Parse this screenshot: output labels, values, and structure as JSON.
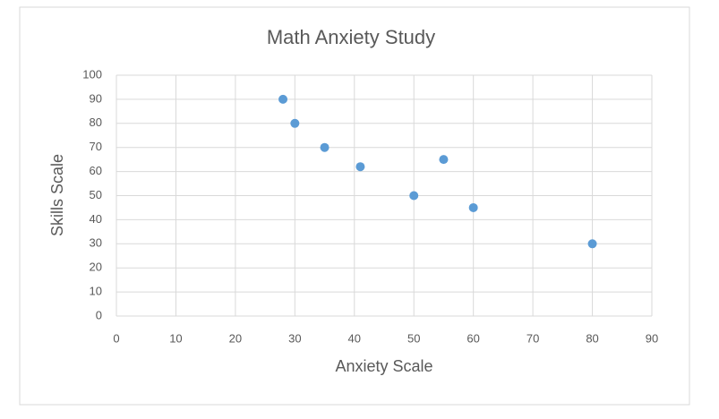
{
  "chart_data": {
    "type": "scatter",
    "title": "Math Anxiety Study",
    "x_label": "Anxiety Scale",
    "y_label": "Skills Scale",
    "series": [
      {
        "name": "Skills Scale",
        "color": "#5b9bd5",
        "x": [
          28,
          30,
          35,
          41,
          50,
          55,
          60,
          80
        ],
        "values": [
          90,
          80,
          70,
          62,
          50,
          65,
          45,
          30
        ]
      }
    ],
    "xlim": [
      0,
      90
    ],
    "xticks": [
      0,
      10,
      20,
      30,
      40,
      50,
      60,
      70,
      80,
      90
    ],
    "ylim": [
      0,
      100
    ],
    "yticks": [
      0,
      10,
      20,
      30,
      40,
      50,
      60,
      70,
      80,
      90,
      100
    ],
    "grid": true
  }
}
